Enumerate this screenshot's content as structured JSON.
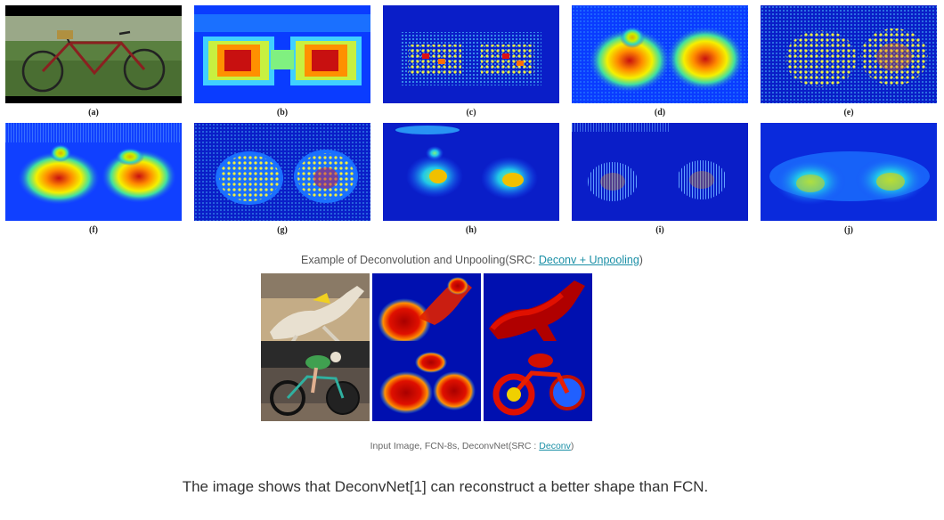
{
  "figure_top": {
    "labels": [
      "(a)",
      "(b)",
      "(c)",
      "(d)",
      "(e)",
      "(f)",
      "(g)",
      "(h)",
      "(i)",
      "(j)"
    ]
  },
  "caption1": {
    "prefix": "Example of Deconvolution and Unpooling(SRC: ",
    "link": "Deconv + Unpooling",
    "suffix": ")"
  },
  "caption2": {
    "prefix": "Input Image, FCN-8s, DeconvNet(SRC : ",
    "link": "Deconv",
    "suffix": ")"
  },
  "main_text": "The image shows that DeconvNet[1] can reconstruct a better shape than FCN.",
  "colors": {
    "heatmap_bg": "#0a1ec8",
    "heatmap_deep": "#00008f",
    "link": "#1a8fa6"
  }
}
